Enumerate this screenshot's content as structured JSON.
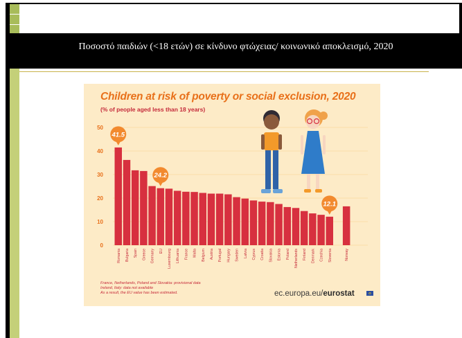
{
  "slide": {
    "title": "Ποσοστό παιδιών (<18 ετών) σε κίνδυνο φτώχειας/ κοινωνικό αποκλεισμό, 2020"
  },
  "infographic": {
    "source_notes": [
      "France, Netherlands, Poland and Slovakia: provisional data",
      "Ireland, Italy: data not available",
      "As a result, the EU value has been estimated."
    ],
    "brand_prefix": "ec.europa.eu/",
    "brand_name": "eurostat"
  },
  "colors": {
    "bar": "#d7303f",
    "title": "#e8701a",
    "callout": "#f28a2e",
    "background": "#fdebc7",
    "grid": "#fbdca8"
  },
  "chart_data": {
    "type": "bar",
    "title": "Children at risk of poverty or social exclusion, 2020",
    "subtitle": "(% of people aged less than 18 years)",
    "categories": [
      "Romania",
      "Bulgaria",
      "Spain",
      "Greece",
      "Germany",
      "EU",
      "Luxembourg",
      "Lithuania",
      "France",
      "Malta",
      "Belgium",
      "Austria",
      "Portugal",
      "Hungary",
      "Sweden",
      "Latvia",
      "Cyprus",
      "Croatia",
      "Slovakia",
      "Estonia",
      "Poland",
      "Netherlands",
      "Finland",
      "Denmark",
      "Czechia",
      "Slovenia",
      "Norway"
    ],
    "values": [
      41.5,
      36.2,
      31.8,
      31.5,
      25.1,
      24.2,
      24.0,
      23.1,
      22.7,
      22.6,
      22.2,
      21.9,
      21.9,
      21.6,
      20.4,
      19.8,
      19.0,
      18.5,
      18.3,
      17.5,
      16.2,
      15.8,
      14.5,
      13.5,
      12.9,
      12.1,
      16.5
    ],
    "gap_before": [
      "Norway"
    ],
    "callouts": [
      {
        "category": "Romania",
        "label": "41.5"
      },
      {
        "category": "EU",
        "label": "24.2"
      },
      {
        "category": "Slovenia",
        "label": "12.1"
      }
    ],
    "yticks": [
      0,
      10,
      20,
      30,
      40,
      50
    ],
    "ylim": [
      0,
      50
    ],
    "grid": true
  }
}
